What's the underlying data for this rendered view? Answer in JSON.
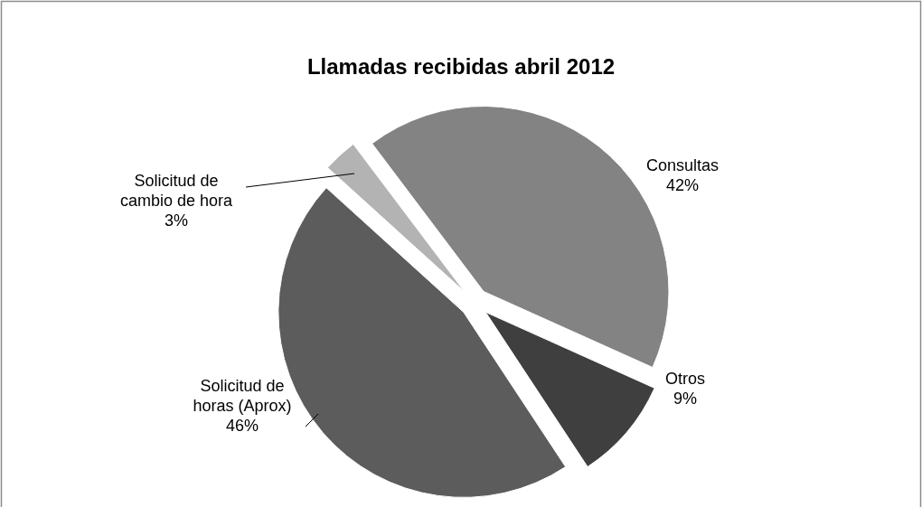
{
  "chart_data": {
    "type": "pie",
    "title": "Llamadas recibidas abril 2012",
    "categories": [
      "Consultas",
      "Otros",
      "Solicitud de horas (Aprox)",
      "Solicitud de cambio de hora"
    ],
    "values": [
      42,
      9,
      46,
      3
    ],
    "value_labels": [
      "42%",
      "9%",
      "46%",
      "3%"
    ],
    "colors": [
      "#838383",
      "#3f3f3f",
      "#5c5c5c",
      "#b3b3b3"
    ]
  }
}
